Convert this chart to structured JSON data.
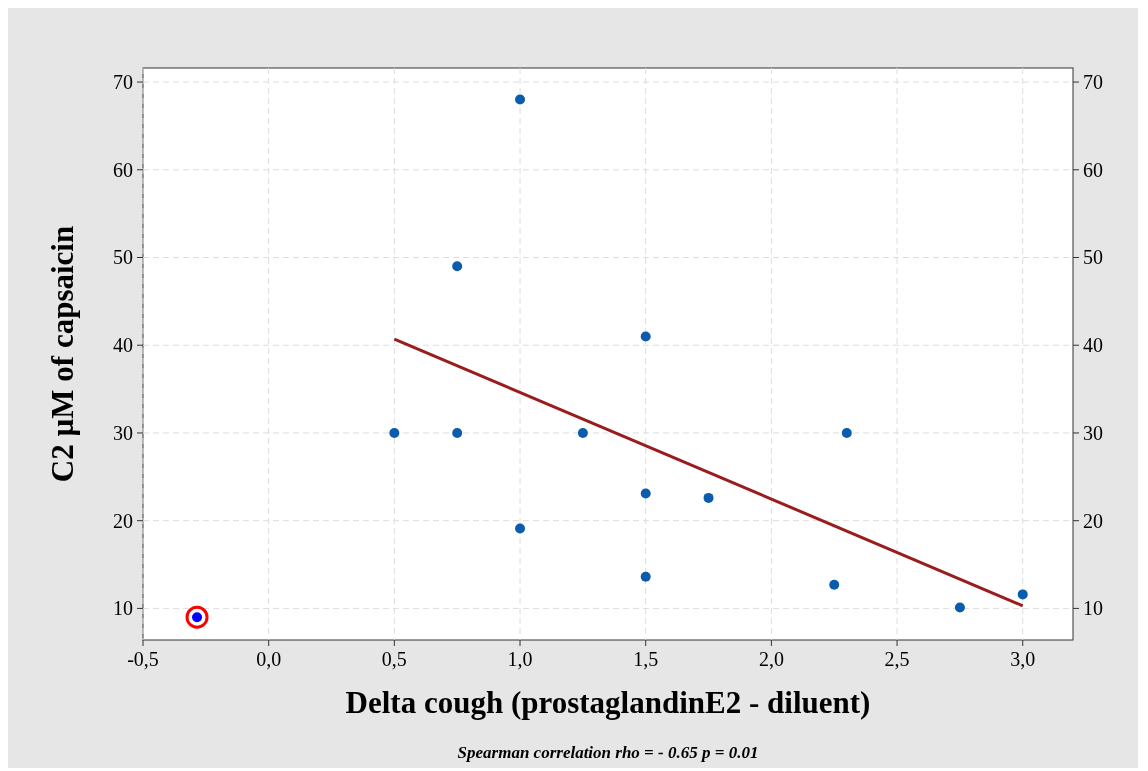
{
  "chart_data": {
    "type": "scatter",
    "xlabel": "Delta cough (prostaglandinE2 - diluent)",
    "ylabel": "C2 µM of capsaicin",
    "annotations": [
      "Spearman correlation rho = - 0.65 p = 0.01"
    ],
    "xlim": [
      -0.5,
      3.2
    ],
    "ylim": [
      6.4,
      71.6
    ],
    "y2lim": [
      6.4,
      71.6
    ],
    "xticks": [
      {
        "value": -0.5,
        "label": "-0,5"
      },
      {
        "value": 0,
        "label": "0,0"
      },
      {
        "value": 0.5,
        "label": "0,5"
      },
      {
        "value": 1,
        "label": "1,0"
      },
      {
        "value": 1.5,
        "label": "1,5"
      },
      {
        "value": 2,
        "label": "2,0"
      },
      {
        "value": 2.5,
        "label": "2,5"
      },
      {
        "value": 3,
        "label": "3,0"
      }
    ],
    "yticks": [
      10,
      20,
      30,
      40,
      50,
      60,
      70
    ],
    "y2ticks": [
      10,
      20,
      30,
      40,
      50,
      60,
      70
    ],
    "grid": true,
    "series": [
      {
        "marker": "circle",
        "color": "#0b5cad",
        "x": [
          0.5,
          0.75,
          0.75,
          1.0,
          1.0,
          1.25,
          1.5,
          1.5,
          1.5,
          1.75,
          2.3,
          2.25,
          2.75,
          3.0
        ],
        "values": [
          30,
          30,
          49,
          68,
          19.1,
          30,
          41,
          23.1,
          13.6,
          22.6,
          30,
          12.7,
          10.1,
          11.6
        ]
      },
      {
        "marker": "circle",
        "color": "#0000ff",
        "x": [
          -0.285
        ],
        "values": [
          9
        ]
      },
      {
        "type": "line",
        "color": "#9b1c1c",
        "line_style": "solid",
        "x": [
          0.5,
          3.0
        ],
        "values": [
          40.7,
          10.3
        ]
      }
    ]
  }
}
